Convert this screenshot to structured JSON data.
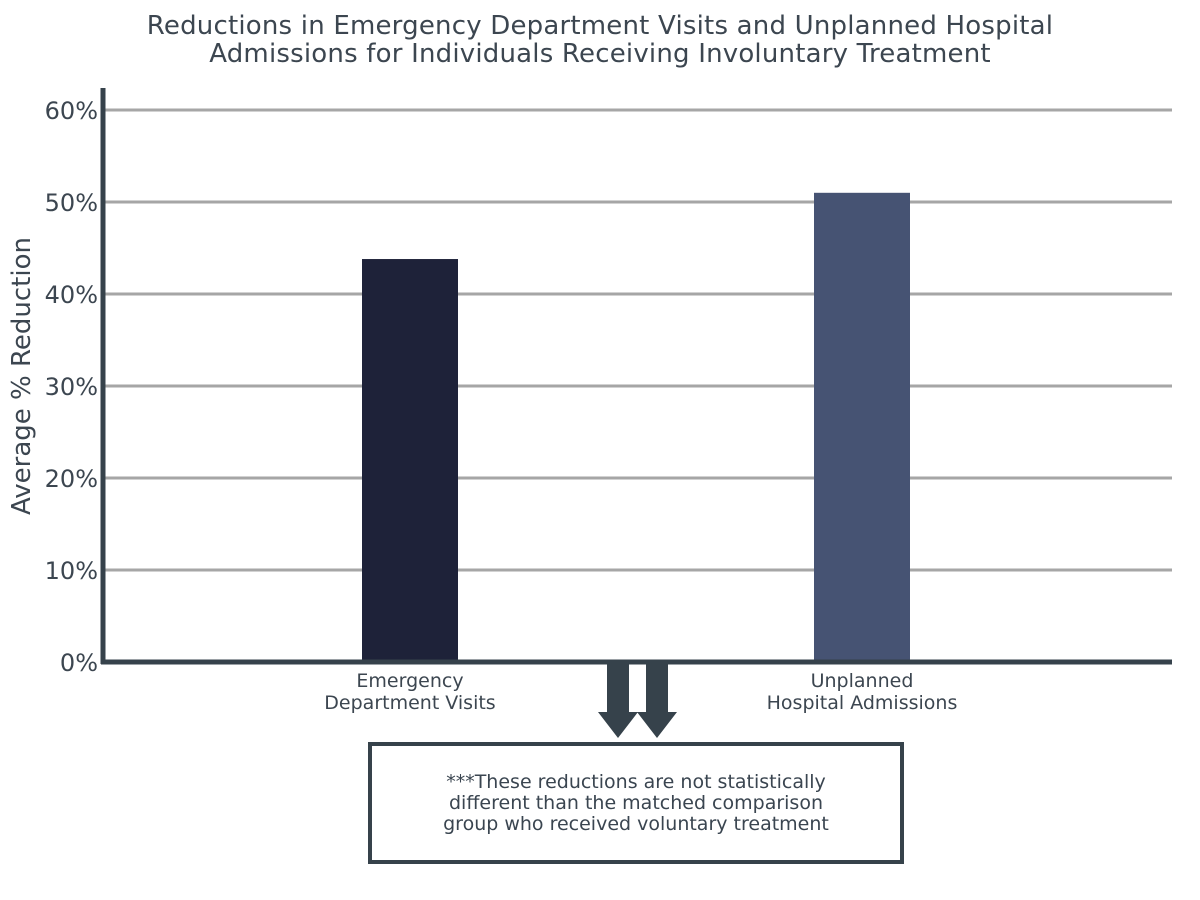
{
  "chart_data": {
    "type": "bar",
    "title": [
      "Reductions in Emergency Department Visits and Unplanned Hospital",
      "Admissions for Individuals Receiving Involuntary Treatment"
    ],
    "ylabel": "Average % Reduction",
    "xlabel": "",
    "categories": [
      [
        "Emergency",
        "Department Visits"
      ],
      [
        "Unplanned",
        "Hospital Admissions"
      ]
    ],
    "values": [
      43.8,
      51.0
    ],
    "bar_colors": [
      "#1e2239",
      "#465373"
    ],
    "ylim": [
      0,
      60
    ],
    "yticks": [
      "0%",
      "10%",
      "20%",
      "30%",
      "40%",
      "50%",
      "60%"
    ],
    "grid": true,
    "annotation": [
      "***These reductions are not statistically",
      "different than the matched comparison",
      "group who received voluntary treatment"
    ]
  },
  "colors": {
    "axis": "#36424b",
    "grid": "#a6a6a6",
    "text": "#3c4650"
  }
}
